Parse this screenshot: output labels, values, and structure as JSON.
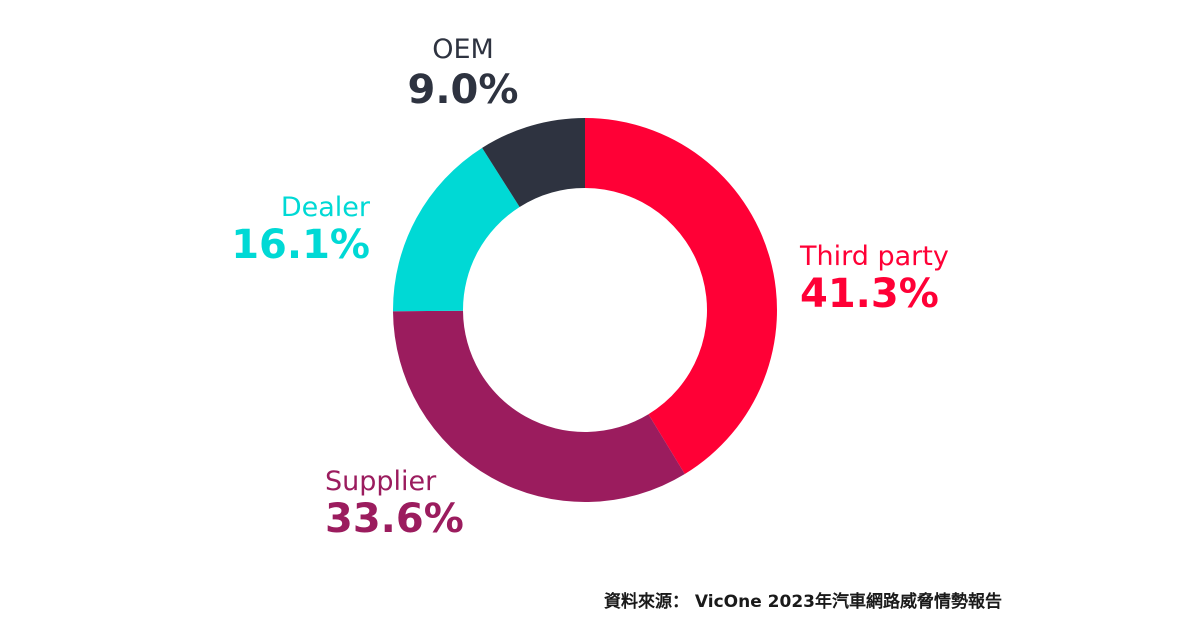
{
  "chart_data": {
    "type": "pie",
    "donut": true,
    "slices": [
      {
        "name": "Third party",
        "value": 41.3,
        "label": "41.3%",
        "color": "#ff0036"
      },
      {
        "name": "Supplier",
        "value": 33.6,
        "label": "33.6%",
        "color": "#9b1c5e"
      },
      {
        "name": "Dealer",
        "value": 16.1,
        "label": "16.1%",
        "color": "#00d9d5"
      },
      {
        "name": "OEM",
        "value": 9.0,
        "label": "9.0%",
        "color": "#2e3340"
      }
    ]
  },
  "source": "資料來源： VicOne 2023年汽車網路威脅情勢報告"
}
